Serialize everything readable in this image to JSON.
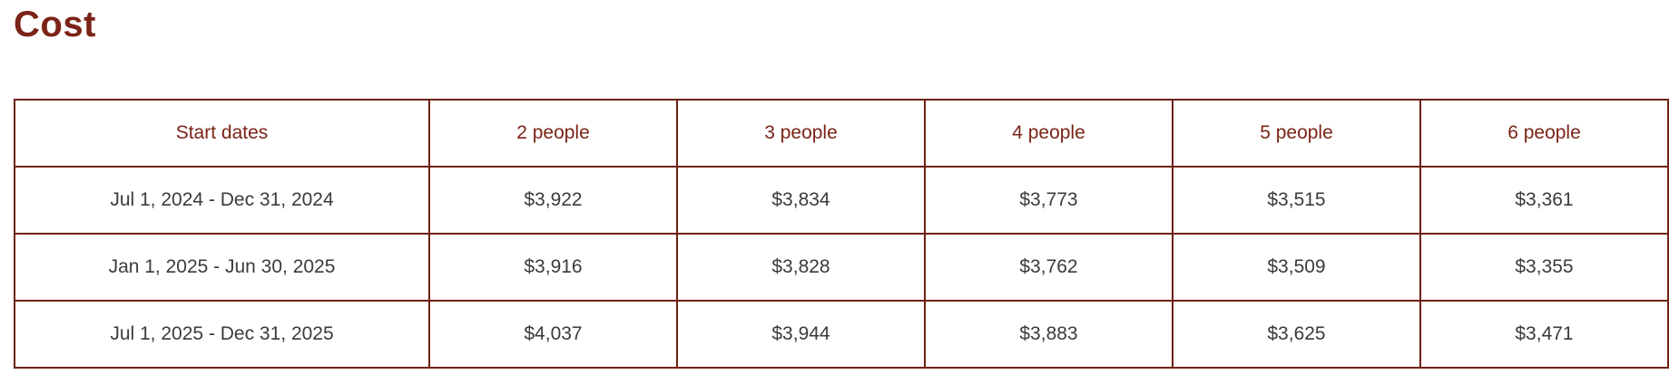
{
  "heading": "Cost",
  "colors": {
    "accent_maroon": "#7b2317",
    "table_border": "#6e2113",
    "body_text": "#3b3b3b",
    "background": "#ffffff"
  },
  "table": {
    "columns": [
      "Start dates",
      "2 people",
      "3 people",
      "4 people",
      "5 people",
      "6 people"
    ],
    "rows": [
      {
        "cells": [
          "Jul 1, 2024 - Dec 31, 2024",
          "$3,922",
          "$3,834",
          "$3,773",
          "$3,515",
          "$3,361"
        ]
      },
      {
        "cells": [
          "Jan 1, 2025 - Jun 30, 2025",
          "$3,916",
          "$3,828",
          "$3,762",
          "$3,509",
          "$3,355"
        ]
      },
      {
        "cells": [
          "Jul 1, 2025 - Dec 31, 2025",
          "$4,037",
          "$3,944",
          "$3,883",
          "$3,625",
          "$3,471"
        ]
      }
    ]
  },
  "chart_data": {
    "type": "table",
    "title": "Cost",
    "categories": [
      "2 people",
      "3 people",
      "4 people",
      "5 people",
      "6 people"
    ],
    "series": [
      {
        "name": "Jul 1, 2024 - Dec 31, 2024",
        "values": [
          3922,
          3834,
          3773,
          3515,
          3361
        ]
      },
      {
        "name": "Jan 1, 2025 - Jun 30, 2025",
        "values": [
          3916,
          3828,
          3762,
          3509,
          3355
        ]
      },
      {
        "name": "Jul 1, 2025 - Dec 31, 2025",
        "values": [
          4037,
          3944,
          3883,
          3625,
          3471
        ]
      }
    ]
  }
}
